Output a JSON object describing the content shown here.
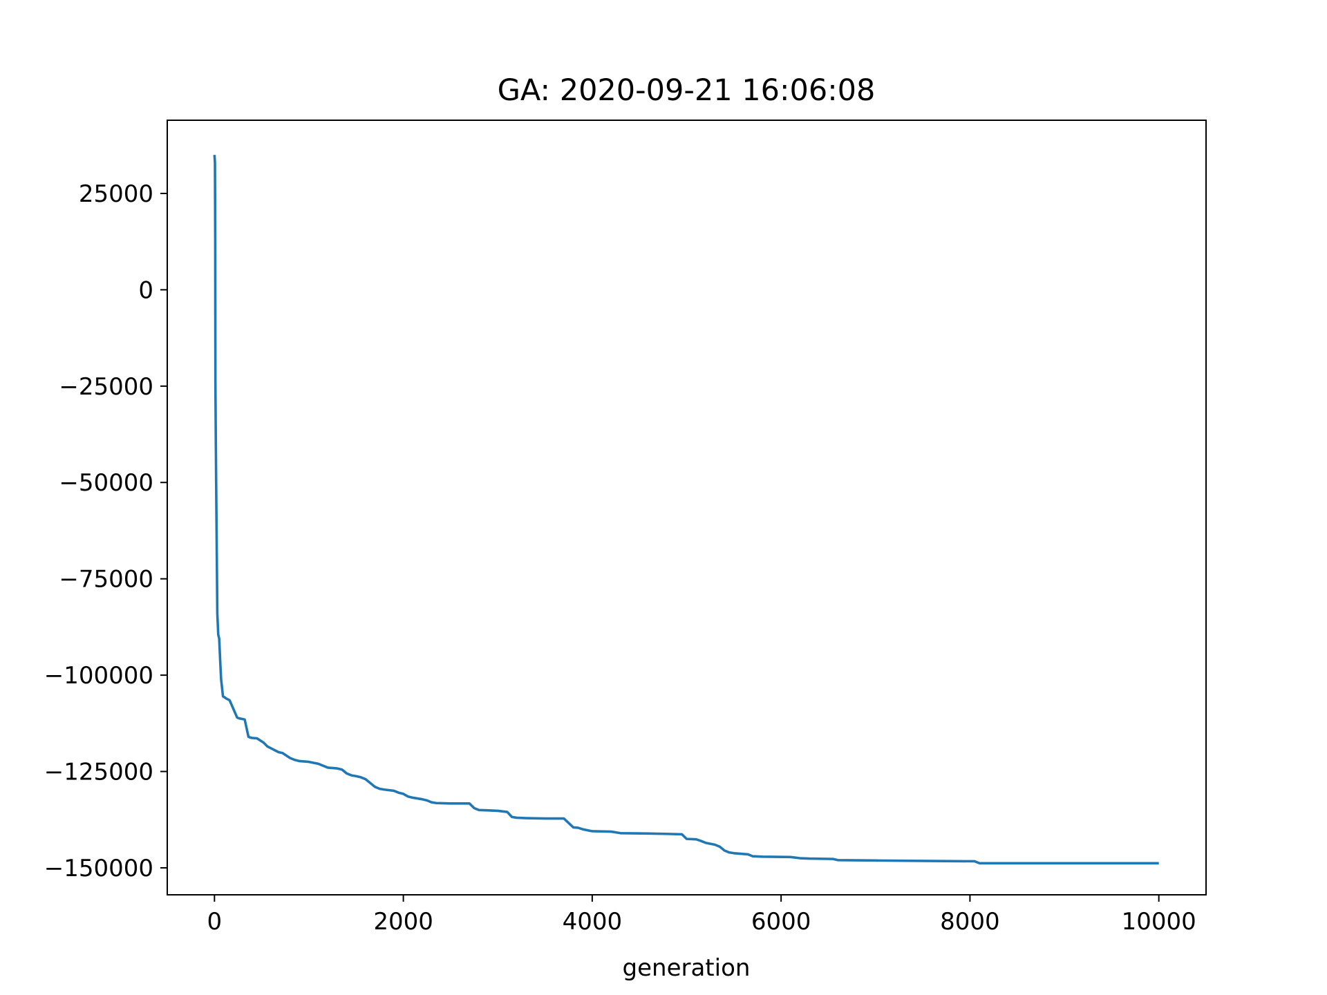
{
  "chart_data": {
    "type": "line",
    "title": "GA: 2020-09-21 16:06:08",
    "xlabel": "generation",
    "ylabel": "",
    "xlim": [
      -500,
      10500
    ],
    "ylim": [
      -157000,
      44000
    ],
    "xticks": [
      0,
      2000,
      4000,
      6000,
      8000,
      10000
    ],
    "xtick_labels": [
      "0",
      "2000",
      "4000",
      "6000",
      "8000",
      "10000"
    ],
    "yticks": [
      25000,
      0,
      -25000,
      -50000,
      -75000,
      -100000,
      -125000,
      -150000
    ],
    "ytick_labels": [
      "25000",
      "0",
      "−25000",
      "−50000",
      "−75000",
      "−100000",
      "−125000",
      "−150000"
    ],
    "grid": false,
    "legend": "none",
    "series": [
      {
        "color": "#1f77b4",
        "x": [
          0,
          5,
          8,
          10,
          14,
          18,
          25,
          30,
          40,
          50,
          60,
          70,
          90,
          110,
          120,
          135,
          160,
          240,
          260,
          280,
          320,
          360,
          380,
          400,
          450,
          520,
          560,
          600,
          640,
          680,
          720,
          800,
          850,
          900,
          1000,
          1100,
          1150,
          1200,
          1300,
          1350,
          1400,
          1450,
          1500,
          1550,
          1600,
          1650,
          1700,
          1750,
          1800,
          1900,
          1950,
          2000,
          2050,
          2100,
          2200,
          2250,
          2300,
          2350,
          2500,
          2700,
          2750,
          2800,
          2900,
          3000,
          3100,
          3150,
          3200,
          3300,
          3500,
          3700,
          3800,
          3850,
          3900,
          4000,
          4200,
          4300,
          4600,
          4800,
          4950,
          5000,
          5100,
          5150,
          5200,
          5300,
          5350,
          5400,
          5450,
          5500,
          5650,
          5700,
          5800,
          6100,
          6200,
          6300,
          6550,
          6600,
          7000,
          7500,
          8050,
          8100,
          8500,
          9000,
          9500,
          10000
        ],
        "y": [
          35000,
          33000,
          13000,
          -24000,
          -38500,
          -50500,
          -70000,
          -84000,
          -89500,
          -90500,
          -96000,
          -101000,
          -105500,
          -105800,
          -106000,
          -106200,
          -106500,
          -111000,
          -111200,
          -111300,
          -111500,
          -116000,
          -116200,
          -116300,
          -116400,
          -117500,
          -118500,
          -119000,
          -119500,
          -120000,
          -120200,
          -121500,
          -122000,
          -122300,
          -122500,
          -123000,
          -123500,
          -124000,
          -124200,
          -124500,
          -125500,
          -126000,
          -126200,
          -126500,
          -127000,
          -128000,
          -129000,
          -129500,
          -129700,
          -130000,
          -130500,
          -130800,
          -131500,
          -131800,
          -132200,
          -132500,
          -133000,
          -133200,
          -133300,
          -133300,
          -134500,
          -135000,
          -135100,
          -135200,
          -135500,
          -136800,
          -137000,
          -137100,
          -137200,
          -137200,
          -139500,
          -139600,
          -140000,
          -140500,
          -140600,
          -141000,
          -141100,
          -141200,
          -141300,
          -142500,
          -142600,
          -143000,
          -143500,
          -144000,
          -144500,
          -145500,
          -146000,
          -146200,
          -146500,
          -147000,
          -147100,
          -147200,
          -147500,
          -147600,
          -147700,
          -148000,
          -148100,
          -148200,
          -148300,
          -148800,
          -148800,
          -148800,
          -148800,
          -148800
        ]
      }
    ]
  }
}
